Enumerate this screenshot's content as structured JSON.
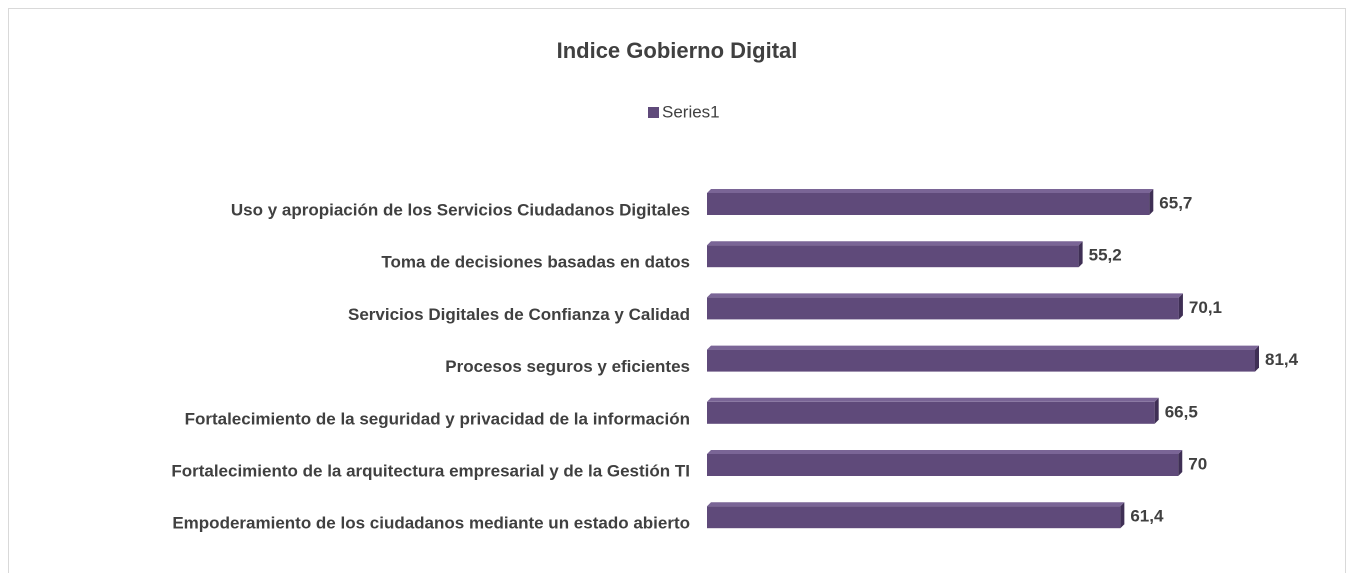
{
  "chart_data": {
    "type": "bar",
    "orientation": "horizontal",
    "title": "Indice Gobierno Digital",
    "categories": [
      "Uso y apropiación de los Servicios Ciudadanos Digitales",
      "Toma de decisiones basadas en datos",
      "Servicios Digitales de Confianza y Calidad",
      "Procesos seguros y eficientes",
      "Fortalecimiento de la seguridad y privacidad de la información",
      "Fortalecimiento de la arquitectura empresarial y de la Gestión TI",
      "Empoderamiento de los ciudadanos mediante un estado abierto"
    ],
    "series": [
      {
        "name": "Series1",
        "color": "#5f4a7a",
        "values": [
          65.7,
          55.2,
          70.1,
          81.4,
          66.5,
          70,
          61.4
        ],
        "value_labels": [
          "65,7",
          "55,2",
          "70,1",
          "81,4",
          "66,5",
          "70",
          "61,4"
        ]
      }
    ],
    "legend": "top"
  }
}
